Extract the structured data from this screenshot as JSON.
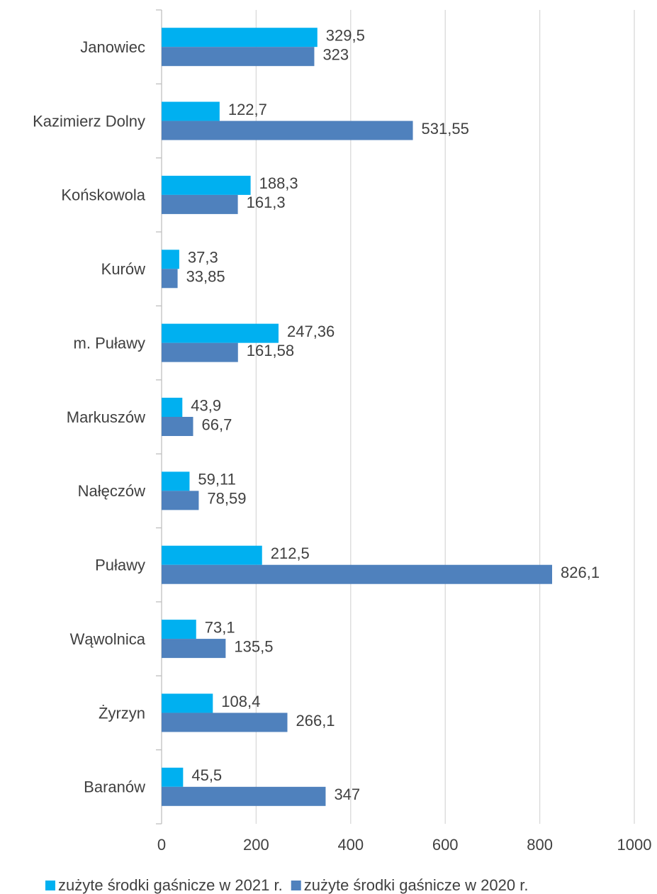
{
  "chart_data": {
    "type": "bar",
    "orientation": "horizontal",
    "categories": [
      "Janowiec",
      "Kazimierz Dolny",
      "Końskowola",
      "Kurów",
      "m. Puławy",
      "Markuszów",
      "Nałęczów",
      "Puławy",
      "Wąwolnica",
      "Żyrzyn",
      "Baranów"
    ],
    "series": [
      {
        "name": "zużyte środki gaśnicze w 2021 r.",
        "color": "#00b0f0",
        "values": [
          329.5,
          122.7,
          188.3,
          37.3,
          247.36,
          43.9,
          59.11,
          212.5,
          73.1,
          108.4,
          45.5
        ],
        "value_labels": [
          "329,5",
          "122,7",
          "188,3",
          "37,3",
          "247,36",
          "43,9",
          "59,11",
          "212,5",
          "73,1",
          "108,4",
          "45,5"
        ]
      },
      {
        "name": "zużyte środki gaśnicze w 2020 r.",
        "color": "#4f81bd",
        "values": [
          323,
          531.55,
          161.3,
          33.85,
          161.58,
          66.7,
          78.59,
          826.1,
          135.5,
          266.1,
          347
        ],
        "value_labels": [
          "323",
          "531,55",
          "161,3",
          "33,85",
          "161,58",
          "66,7",
          "78,59",
          "826,1",
          "135,5",
          "266,1",
          "347"
        ]
      }
    ],
    "xlim": [
      0,
      1000
    ],
    "xticks": [
      0,
      200,
      400,
      600,
      800,
      1000
    ],
    "grid": true,
    "legend": "bottom"
  }
}
